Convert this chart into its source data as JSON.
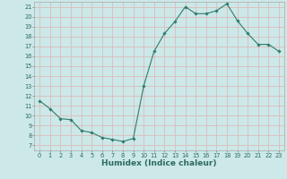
{
  "x": [
    0,
    1,
    2,
    3,
    4,
    5,
    6,
    7,
    8,
    9,
    10,
    11,
    12,
    13,
    14,
    15,
    16,
    17,
    18,
    19,
    20,
    21,
    22,
    23
  ],
  "y": [
    11.5,
    10.7,
    9.7,
    9.6,
    8.5,
    8.3,
    7.8,
    7.6,
    7.4,
    7.7,
    13.0,
    16.5,
    18.3,
    19.5,
    21.0,
    20.3,
    20.3,
    20.6,
    21.3,
    19.6,
    18.3,
    17.2,
    17.2,
    16.5
  ],
  "line_color": "#2d7d6e",
  "marker": "D",
  "marker_size": 1.8,
  "bg_color": "#cce8e8",
  "grid_color": "#ddbbbb",
  "xlabel": "Humidex (Indice chaleur)",
  "xlim": [
    -0.5,
    23.5
  ],
  "ylim": [
    6.5,
    21.5
  ],
  "yticks": [
    7,
    8,
    9,
    10,
    11,
    12,
    13,
    14,
    15,
    16,
    17,
    18,
    19,
    20,
    21
  ],
  "xticks": [
    0,
    1,
    2,
    3,
    4,
    5,
    6,
    7,
    8,
    9,
    10,
    11,
    12,
    13,
    14,
    15,
    16,
    17,
    18,
    19,
    20,
    21,
    22,
    23
  ],
  "tick_label_fontsize": 4.8,
  "xlabel_fontsize": 6.5,
  "axis_color": "#2d6b5e",
  "spine_color": "#aaaaaa",
  "linewidth": 0.8
}
